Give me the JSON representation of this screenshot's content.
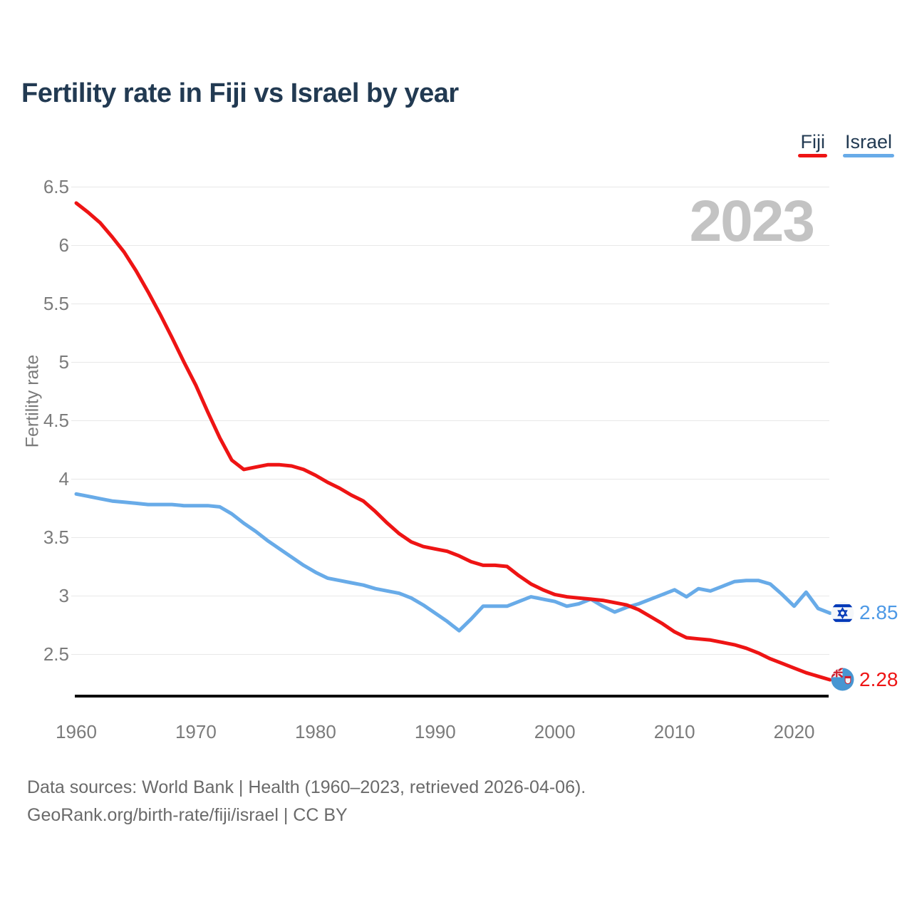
{
  "header": {
    "title": "Fertility rate in Fiji vs Israel by year"
  },
  "watermark_year": "2023",
  "y_axis": {
    "label": "Fertility rate"
  },
  "footer": {
    "line1": "Data sources: World Bank | Health (1960–2023, retrieved 2026-04-06).",
    "line2": "GeoRank.org/birth-rate/fiji/israel | CC BY"
  },
  "colors": {
    "fiji_line": "#ee1414",
    "israel_line": "#68abe8",
    "israel_value_text": "#4d99e6",
    "fiji_value_text": "#ee1414",
    "title_text": "#223a52",
    "axis_text": "#7b7b7b",
    "watermark": "#c3c3c3",
    "gridline": "#e8e8e8",
    "axis_line": "#0b0b0b",
    "israel_flag_blue": "#0038b8",
    "fiji_flag_blue": "#4796d2",
    "flag_red": "#d01f2e"
  },
  "chart_data": {
    "type": "line",
    "title": "Fertility rate in Fiji vs Israel by year",
    "xlabel": "",
    "ylabel": "Fertility rate",
    "x_start": 1960,
    "x_end": 2023,
    "x_ticks": [
      1960,
      1970,
      1980,
      1990,
      2000,
      2010,
      2020
    ],
    "y_ticks": [
      6.5,
      6,
      5.5,
      5,
      4.5,
      4,
      3.5,
      3,
      2.5
    ],
    "ylim": [
      2.17,
      6.5
    ],
    "grid": "horizontal",
    "legend_position": "top-right",
    "watermark": "2023",
    "series": [
      {
        "name": "Fiji",
        "color": "#ee1414",
        "label_color": "#ee1414",
        "end_label": "2.28",
        "end_value": 2.28,
        "values": [
          6.36,
          6.28,
          6.19,
          6.07,
          5.94,
          5.78,
          5.6,
          5.41,
          5.21,
          5.0,
          4.8,
          4.57,
          4.35,
          4.16,
          4.08,
          4.1,
          4.12,
          4.12,
          4.11,
          4.08,
          4.03,
          3.97,
          3.92,
          3.86,
          3.81,
          3.72,
          3.62,
          3.53,
          3.46,
          3.42,
          3.4,
          3.38,
          3.34,
          3.29,
          3.26,
          3.26,
          3.25,
          3.17,
          3.1,
          3.05,
          3.01,
          2.99,
          2.98,
          2.97,
          2.96,
          2.94,
          2.92,
          2.88,
          2.82,
          2.76,
          2.69,
          2.64,
          2.63,
          2.62,
          2.6,
          2.58,
          2.55,
          2.51,
          2.46,
          2.42,
          2.38,
          2.34,
          2.31,
          2.28
        ]
      },
      {
        "name": "Israel",
        "color": "#68abe8",
        "label_color": "#4d99e6",
        "end_label": "2.85",
        "end_value": 2.85,
        "values": [
          3.87,
          3.85,
          3.83,
          3.81,
          3.8,
          3.79,
          3.78,
          3.78,
          3.78,
          3.77,
          3.77,
          3.77,
          3.76,
          3.7,
          3.62,
          3.55,
          3.47,
          3.4,
          3.33,
          3.26,
          3.2,
          3.15,
          3.13,
          3.11,
          3.09,
          3.06,
          3.04,
          3.02,
          2.98,
          2.92,
          2.85,
          2.78,
          2.7,
          2.8,
          2.91,
          2.91,
          2.91,
          2.95,
          2.99,
          2.97,
          2.95,
          2.91,
          2.93,
          2.97,
          2.91,
          2.86,
          2.9,
          2.93,
          2.97,
          3.01,
          3.05,
          2.99,
          3.06,
          3.04,
          3.08,
          3.12,
          3.13,
          3.13,
          3.1,
          3.01,
          2.91,
          3.03,
          2.89,
          2.85
        ]
      }
    ]
  }
}
